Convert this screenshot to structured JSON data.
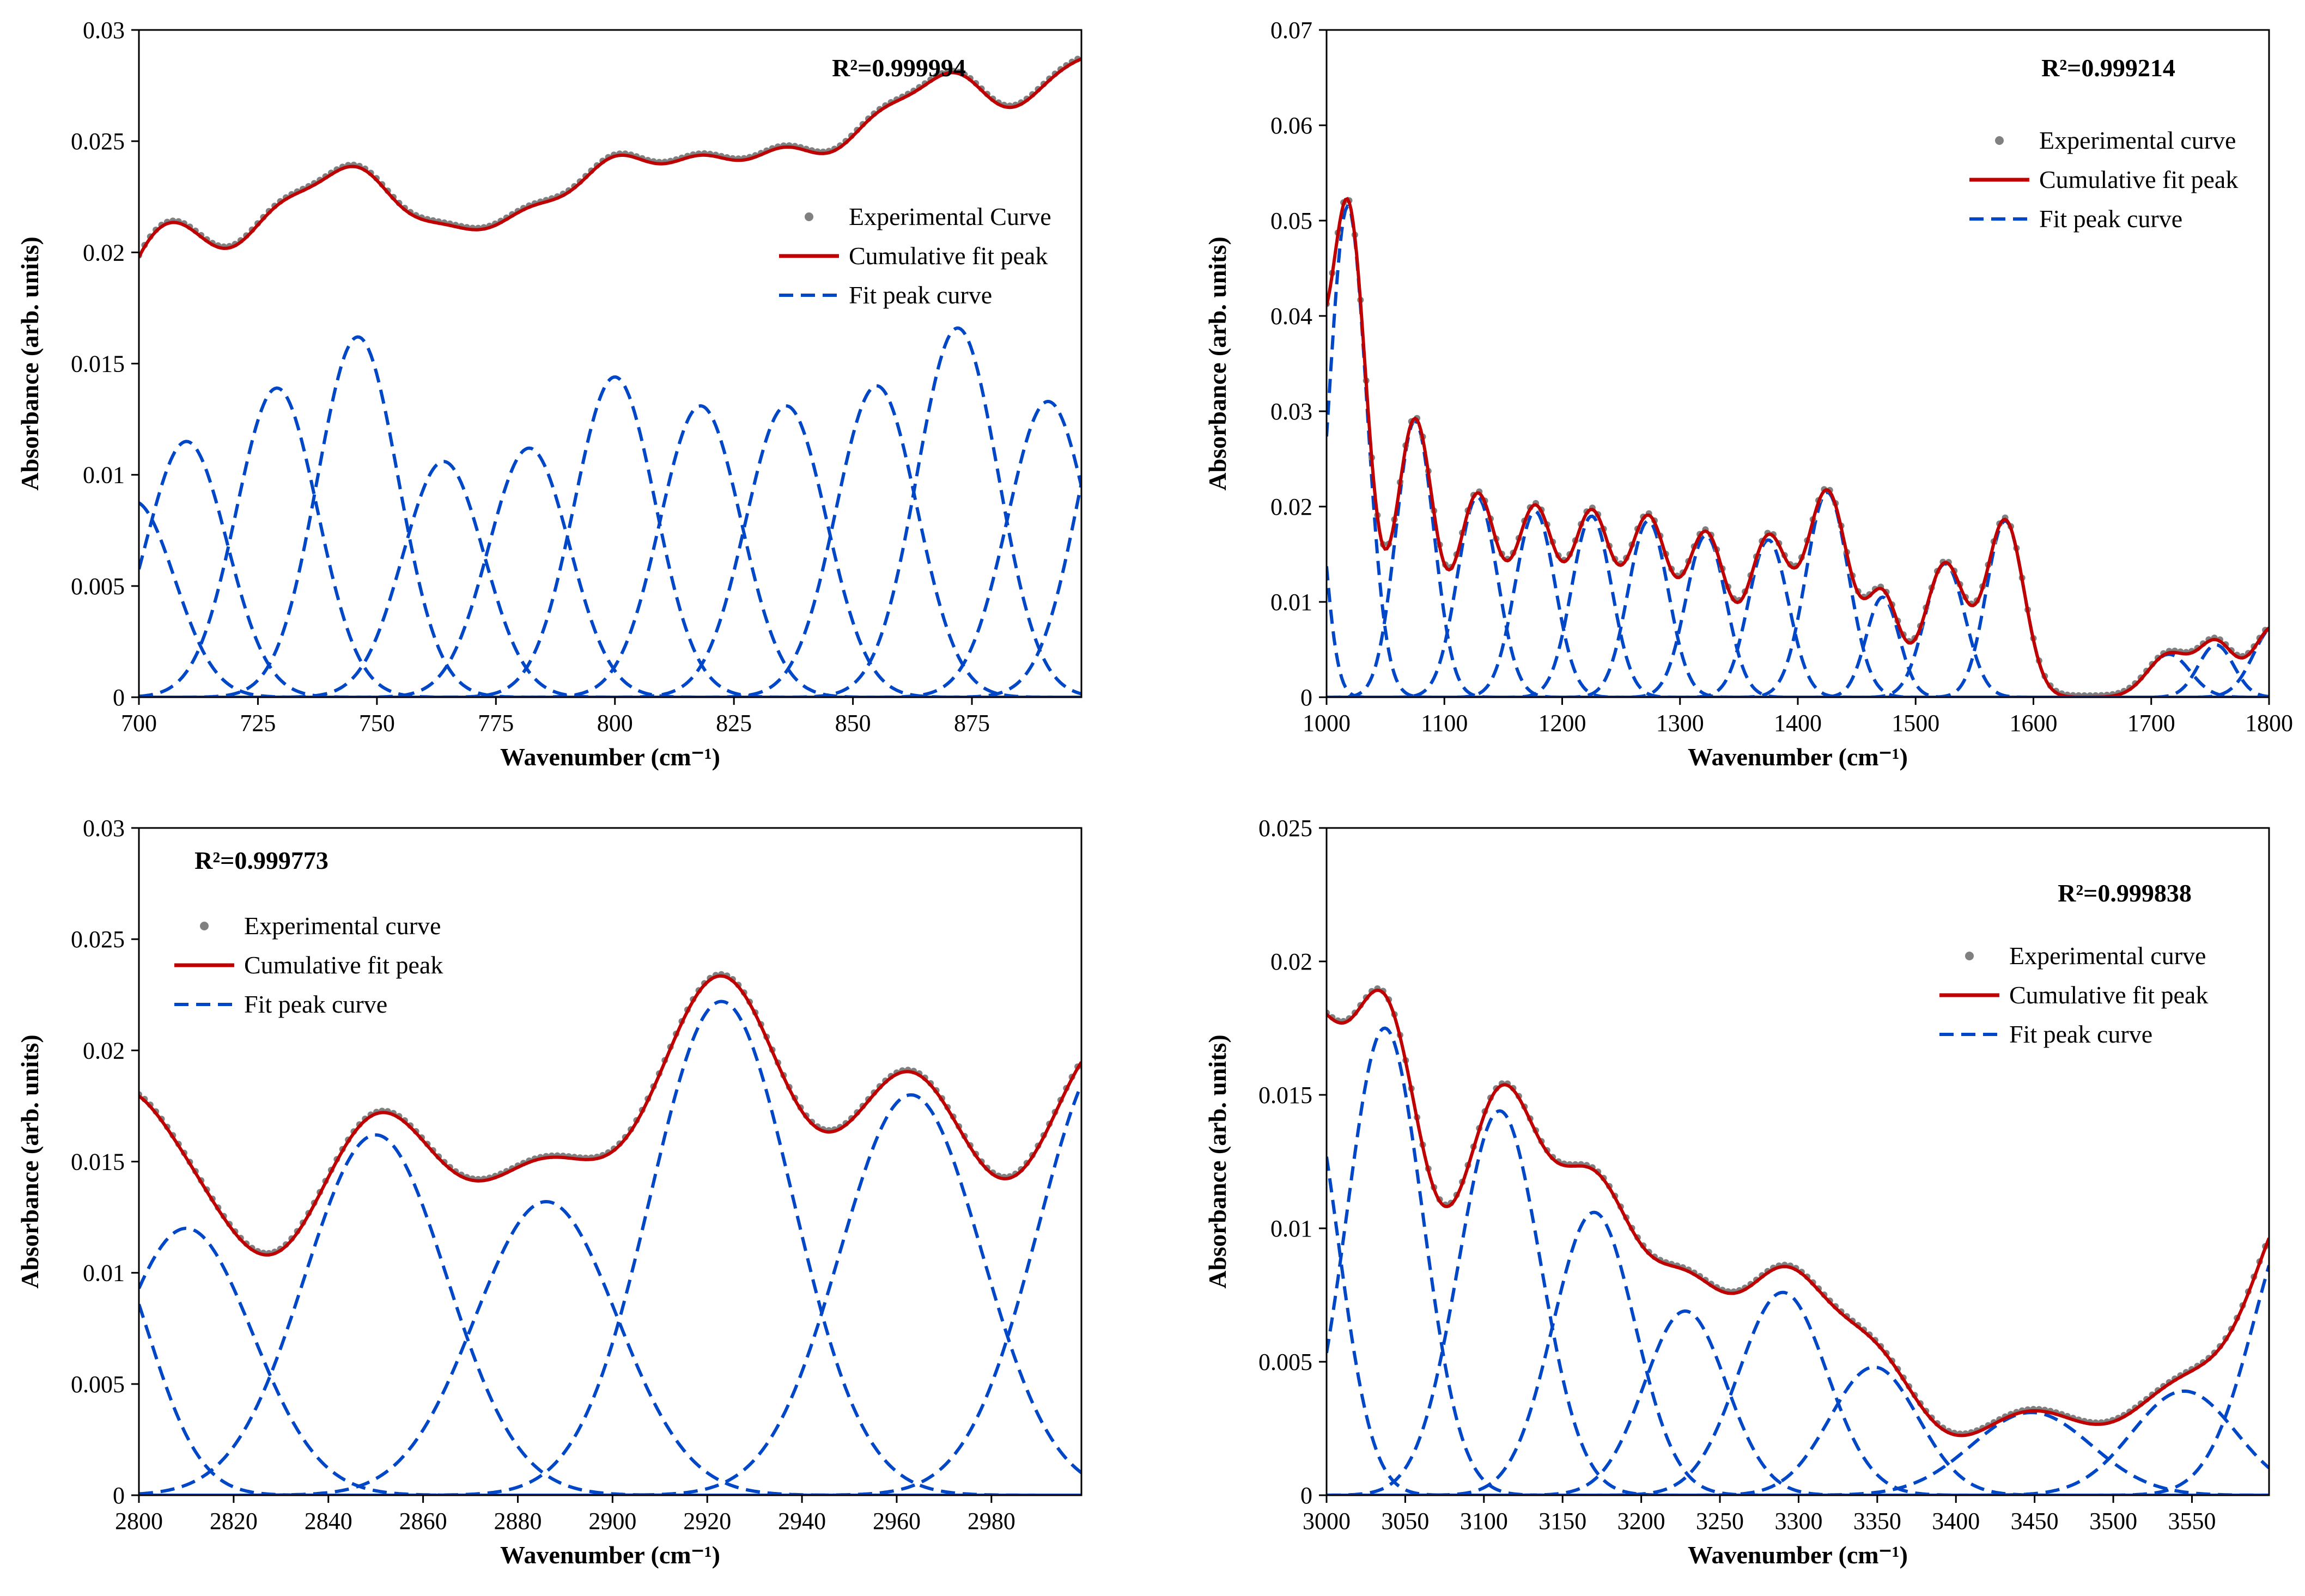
{
  "chart_data": [
    {
      "type": "line",
      "panel": "top-left",
      "annotation": "R²=0.999994",
      "xlabel": "Wavenumber (cm⁻¹)",
      "ylabel": "Absorbance (arb. units)",
      "xlim": [
        700,
        898
      ],
      "ylim": [
        0,
        0.03
      ],
      "xticks": [
        700,
        725,
        750,
        775,
        800,
        825,
        850,
        875
      ],
      "yticks": [
        0,
        0.005,
        0.01,
        0.015,
        0.02,
        0.025,
        0.03
      ],
      "ytick_labels": [
        "0",
        "0.005",
        "0.01",
        "0.015",
        "0.02",
        "0.025",
        "0.03"
      ],
      "legend": {
        "position": "right",
        "entries": [
          "Experimental Curve",
          "Cumulative fit peak",
          "Fit peak curve"
        ]
      },
      "baseline": 0.0172,
      "baseline_end": 0.0235,
      "peaks": [
        {
          "center": 699,
          "height": 0.0088,
          "width": 8.5
        },
        {
          "center": 710,
          "height": 0.0115,
          "width": 8.5
        },
        {
          "center": 729,
          "height": 0.0139,
          "width": 8.5
        },
        {
          "center": 746,
          "height": 0.0162,
          "width": 8.5
        },
        {
          "center": 764,
          "height": 0.0106,
          "width": 8.5
        },
        {
          "center": 782,
          "height": 0.0112,
          "width": 8.5
        },
        {
          "center": 800,
          "height": 0.0144,
          "width": 8.5
        },
        {
          "center": 818,
          "height": 0.0131,
          "width": 8.5
        },
        {
          "center": 836,
          "height": 0.0131,
          "width": 8.5
        },
        {
          "center": 855,
          "height": 0.014,
          "width": 8.5
        },
        {
          "center": 872,
          "height": 0.0166,
          "width": 8.5
        },
        {
          "center": 891,
          "height": 0.0133,
          "width": 8.5
        },
        {
          "center": 906,
          "height": 0.015,
          "width": 8.5
        }
      ]
    },
    {
      "type": "line",
      "panel": "top-right",
      "annotation": "R²=0.999214",
      "xlabel": "Wavenumber (cm⁻¹)",
      "ylabel": "Absorbance (arb. units)",
      "xlim": [
        1000,
        1800
      ],
      "ylim": [
        0,
        0.07
      ],
      "xticks": [
        1000,
        1100,
        1200,
        1300,
        1400,
        1500,
        1600,
        1700,
        1800
      ],
      "yticks": [
        0,
        0.01,
        0.02,
        0.03,
        0.04,
        0.05,
        0.06,
        0.07
      ],
      "ytick_labels": [
        "0",
        "0.01",
        "0.02",
        "0.03",
        "0.04",
        "0.05",
        "0.06",
        "0.07"
      ],
      "legend": {
        "position": "top-right",
        "entries": [
          "Experimental curve",
          "Cumulative fit peak",
          "Fit peak curve"
        ]
      },
      "baseline": 0.0,
      "baseline_end": 0.0,
      "peaks": [
        {
          "center": 985,
          "height": 0.03,
          "width": 12
        },
        {
          "center": 1018,
          "height": 0.0515,
          "width": 16
        },
        {
          "center": 1075,
          "height": 0.029,
          "width": 16
        },
        {
          "center": 1128,
          "height": 0.021,
          "width": 17
        },
        {
          "center": 1177,
          "height": 0.0195,
          "width": 17
        },
        {
          "center": 1225,
          "height": 0.019,
          "width": 17
        },
        {
          "center": 1273,
          "height": 0.0185,
          "width": 17
        },
        {
          "center": 1322,
          "height": 0.017,
          "width": 17
        },
        {
          "center": 1375,
          "height": 0.0165,
          "width": 17
        },
        {
          "center": 1425,
          "height": 0.0215,
          "width": 18
        },
        {
          "center": 1472,
          "height": 0.0105,
          "width": 14
        },
        {
          "center": 1525,
          "height": 0.014,
          "width": 17
        },
        {
          "center": 1576,
          "height": 0.0185,
          "width": 16
        },
        {
          "center": 1715,
          "height": 0.0045,
          "width": 18
        },
        {
          "center": 1755,
          "height": 0.0055,
          "width": 15
        },
        {
          "center": 1805,
          "height": 0.0075,
          "width": 18
        }
      ]
    },
    {
      "type": "line",
      "panel": "bottom-left",
      "annotation": "R²=0.999773",
      "xlabel": "Wavenumber (cm⁻¹)",
      "ylabel": "Absorbance (arb. units)",
      "xlim": [
        2800,
        2999
      ],
      "ylim": [
        0,
        0.03
      ],
      "xticks": [
        2800,
        2820,
        2840,
        2860,
        2880,
        2900,
        2920,
        2940,
        2960,
        2980
      ],
      "yticks": [
        0,
        0.005,
        0.01,
        0.015,
        0.02,
        0.025,
        0.03
      ],
      "ytick_labels": [
        "0",
        "0.005",
        "0.01",
        "0.015",
        "0.02",
        "0.025",
        "0.03"
      ],
      "legend": {
        "position": "top-left",
        "entries": [
          "Experimental curve",
          "Cumulative fit peak",
          "Fit peak curve"
        ]
      },
      "baseline": 0.0,
      "baseline_end": 0.0,
      "peaks": [
        {
          "center": 2791,
          "height": 0.012,
          "width": 11
        },
        {
          "center": 2810,
          "height": 0.012,
          "width": 14
        },
        {
          "center": 2850,
          "height": 0.0162,
          "width": 15
        },
        {
          "center": 2886,
          "height": 0.0132,
          "width": 15
        },
        {
          "center": 2923,
          "height": 0.0222,
          "width": 15
        },
        {
          "center": 2963,
          "height": 0.018,
          "width": 15
        },
        {
          "center": 3005,
          "height": 0.02,
          "width": 15
        }
      ]
    },
    {
      "type": "line",
      "panel": "bottom-right",
      "annotation": "R²=0.999838",
      "xlabel": "Wavenumber (cm⁻¹)",
      "ylabel": "Absorbance (arb. units)",
      "xlim": [
        3000,
        3599
      ],
      "ylim": [
        0,
        0.025
      ],
      "xticks": [
        3000,
        3050,
        3100,
        3150,
        3200,
        3250,
        3300,
        3350,
        3400,
        3450,
        3500,
        3550
      ],
      "yticks": [
        0,
        0.005,
        0.01,
        0.015,
        0.02,
        0.025
      ],
      "ytick_labels": [
        "0",
        "0.005",
        "0.01",
        "0.015",
        "0.02",
        "0.025"
      ],
      "legend": {
        "position": "top-right",
        "entries": [
          "Experimental curve",
          "Cumulative fit peak",
          "Fit peak curve"
        ]
      },
      "baseline": 0.0,
      "baseline_end": 0.0,
      "peaks": [
        {
          "center": 2985,
          "height": 0.016,
          "width": 22
        },
        {
          "center": 3037,
          "height": 0.0175,
          "width": 24
        },
        {
          "center": 3110,
          "height": 0.0144,
          "width": 26
        },
        {
          "center": 3170,
          "height": 0.0106,
          "width": 26
        },
        {
          "center": 3228,
          "height": 0.0069,
          "width": 26
        },
        {
          "center": 3290,
          "height": 0.0076,
          "width": 28
        },
        {
          "center": 3348,
          "height": 0.0048,
          "width": 28
        },
        {
          "center": 3448,
          "height": 0.0031,
          "width": 38
        },
        {
          "center": 3545,
          "height": 0.0039,
          "width": 33
        },
        {
          "center": 3620,
          "height": 0.011,
          "width": 30
        }
      ]
    }
  ],
  "colors": {
    "experimental": "#808080",
    "cumulative": "#c00000",
    "fit_peak": "#0047c8"
  }
}
